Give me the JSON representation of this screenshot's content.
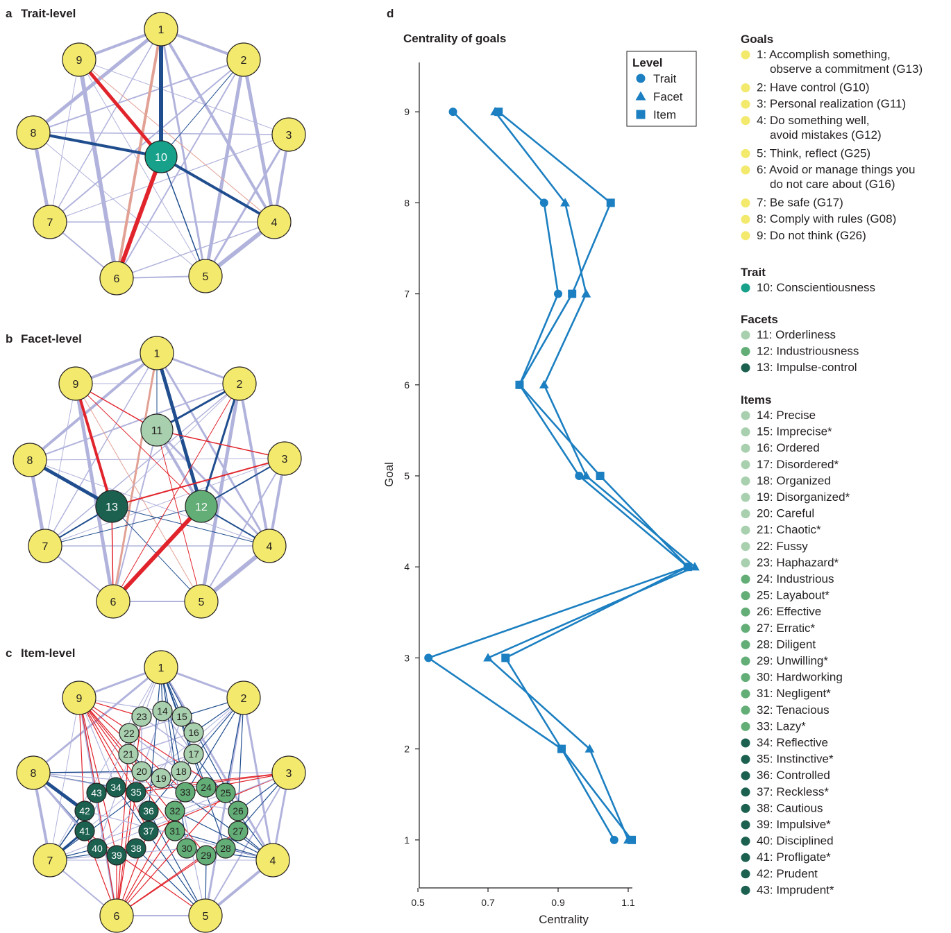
{
  "panels": {
    "a": {
      "letter": "a",
      "title": "Trait-level"
    },
    "b": {
      "letter": "b",
      "title": "Facet-level"
    },
    "c": {
      "letter": "c",
      "title": "Item-level"
    },
    "d": {
      "letter": "d"
    }
  },
  "colors": {
    "goal": "#f2e96d",
    "trait": "#17a08a",
    "facet_orderliness": "#a8d0ae",
    "facet_industriousness": "#63ad76",
    "facet_impulse": "#1c6150",
    "edge_positive": "#b1b3dc",
    "edge_strong": "#1f4d8e",
    "edge_negative": "#e1242c",
    "edge_negative_weak": "#e2a195",
    "series": "#1b7fc1"
  },
  "networks": {
    "trait": {
      "nodes": [
        "1",
        "2",
        "3",
        "4",
        "5",
        "6",
        "7",
        "8",
        "9",
        "10"
      ]
    },
    "facet": {
      "nodes": [
        "1",
        "2",
        "3",
        "4",
        "5",
        "6",
        "7",
        "8",
        "9",
        "11",
        "12",
        "13"
      ]
    },
    "item": {
      "nodes": [
        "1",
        "2",
        "3",
        "4",
        "5",
        "6",
        "7",
        "8",
        "9",
        "14",
        "15",
        "16",
        "17",
        "18",
        "19",
        "20",
        "21",
        "22",
        "23",
        "24",
        "25",
        "26",
        "27",
        "28",
        "29",
        "30",
        "31",
        "32",
        "33",
        "34",
        "35",
        "36",
        "37",
        "38",
        "39",
        "40",
        "41",
        "42",
        "43"
      ]
    }
  },
  "chart_data": {
    "type": "line",
    "title": "Centrality of goals",
    "xlabel": "Centrality",
    "ylabel": "Goal",
    "xlim": [
      0.49,
      1.31
    ],
    "ylim": [
      0.45,
      9.55
    ],
    "xticks": [
      "0.5",
      "0.7",
      "0.9",
      "1.1"
    ],
    "xtick_values": [
      0.5,
      0.7,
      0.9,
      1.1
    ],
    "yticks": [
      "1",
      "2",
      "3",
      "4",
      "5",
      "6",
      "7",
      "8",
      "9"
    ],
    "y": [
      1,
      2,
      3,
      4,
      5,
      6,
      7,
      8,
      9
    ],
    "legend": {
      "title": "Level",
      "position": "top-right"
    },
    "series": [
      {
        "name": "Trait",
        "marker": "circle",
        "values": [
          1.06,
          0.91,
          0.53,
          1.27,
          0.96,
          0.79,
          0.9,
          0.86,
          0.6
        ]
      },
      {
        "name": "Facet",
        "marker": "triangle",
        "values": [
          1.1,
          0.99,
          0.7,
          1.29,
          0.98,
          0.86,
          0.98,
          0.92,
          0.72
        ]
      },
      {
        "name": "Item",
        "marker": "square",
        "values": [
          1.11,
          0.91,
          0.75,
          1.27,
          1.02,
          0.79,
          0.94,
          1.05,
          0.73
        ]
      }
    ]
  },
  "legend": {
    "sections": [
      {
        "title": "Goals",
        "items": [
          {
            "lines": [
              "1: Accomplish something,",
              "observe a commitment (G13)"
            ],
            "color": "#f2e96d"
          },
          {
            "lines": [
              "2: Have control (G10)"
            ],
            "color": "#f2e96d"
          },
          {
            "lines": [
              "3: Personal realization (G11)"
            ],
            "color": "#f2e96d"
          },
          {
            "lines": [
              "4: Do something well,",
              "avoid mistakes (G12)"
            ],
            "color": "#f2e96d"
          },
          {
            "lines": [
              "5: Think, reflect (G25)"
            ],
            "color": "#f2e96d"
          },
          {
            "lines": [
              "6: Avoid or manage things you",
              "do not care about (G16)"
            ],
            "color": "#f2e96d"
          },
          {
            "lines": [
              "7: Be safe (G17)"
            ],
            "color": "#f2e96d"
          },
          {
            "lines": [
              "8: Comply with rules (G08)"
            ],
            "color": "#f2e96d"
          },
          {
            "lines": [
              "9: Do not think (G26)"
            ],
            "color": "#f2e96d"
          }
        ]
      },
      {
        "title": "Trait",
        "items": [
          {
            "lines": [
              "10: Conscientiousness"
            ],
            "color": "#17a08a"
          }
        ]
      },
      {
        "title": "Facets",
        "items": [
          {
            "lines": [
              "11: Orderliness"
            ],
            "color": "#a8d0ae"
          },
          {
            "lines": [
              "12: Industriousness"
            ],
            "color": "#63ad76"
          },
          {
            "lines": [
              "13: Impulse-control"
            ],
            "color": "#1c6150"
          }
        ]
      },
      {
        "title": "Items",
        "items": [
          {
            "lines": [
              "14: Precise"
            ],
            "color": "#a8d0ae"
          },
          {
            "lines": [
              "15: Imprecise*"
            ],
            "color": "#a8d0ae"
          },
          {
            "lines": [
              "16: Ordered"
            ],
            "color": "#a8d0ae"
          },
          {
            "lines": [
              "17: Disordered*"
            ],
            "color": "#a8d0ae"
          },
          {
            "lines": [
              "18: Organized"
            ],
            "color": "#a8d0ae"
          },
          {
            "lines": [
              "19: Disorganized*"
            ],
            "color": "#a8d0ae"
          },
          {
            "lines": [
              "20: Careful"
            ],
            "color": "#a8d0ae"
          },
          {
            "lines": [
              "21: Chaotic*"
            ],
            "color": "#a8d0ae"
          },
          {
            "lines": [
              "22: Fussy"
            ],
            "color": "#a8d0ae"
          },
          {
            "lines": [
              "23: Haphazard*"
            ],
            "color": "#a8d0ae"
          },
          {
            "lines": [
              "24: Industrious"
            ],
            "color": "#63ad76"
          },
          {
            "lines": [
              "25: Layabout*"
            ],
            "color": "#63ad76"
          },
          {
            "lines": [
              "26: Effective"
            ],
            "color": "#63ad76"
          },
          {
            "lines": [
              "27: Erratic*"
            ],
            "color": "#63ad76"
          },
          {
            "lines": [
              "28: Diligent"
            ],
            "color": "#63ad76"
          },
          {
            "lines": [
              "29: Unwilling*"
            ],
            "color": "#63ad76"
          },
          {
            "lines": [
              "30: Hardworking"
            ],
            "color": "#63ad76"
          },
          {
            "lines": [
              "31: Negligent*"
            ],
            "color": "#63ad76"
          },
          {
            "lines": [
              "32: Tenacious"
            ],
            "color": "#63ad76"
          },
          {
            "lines": [
              "33: Lazy*"
            ],
            "color": "#63ad76"
          },
          {
            "lines": [
              "34: Reflective"
            ],
            "color": "#1c6150"
          },
          {
            "lines": [
              "35: Instinctive*"
            ],
            "color": "#1c6150"
          },
          {
            "lines": [
              "36: Controlled"
            ],
            "color": "#1c6150"
          },
          {
            "lines": [
              "37: Reckless*"
            ],
            "color": "#1c6150"
          },
          {
            "lines": [
              "38: Cautious"
            ],
            "color": "#1c6150"
          },
          {
            "lines": [
              "39: Impulsive*"
            ],
            "color": "#1c6150"
          },
          {
            "lines": [
              "40: Disciplined"
            ],
            "color": "#1c6150"
          },
          {
            "lines": [
              "41: Profligate*"
            ],
            "color": "#1c6150"
          },
          {
            "lines": [
              "42: Prudent"
            ],
            "color": "#1c6150"
          },
          {
            "lines": [
              "43: Imprudent*"
            ],
            "color": "#1c6150"
          }
        ]
      }
    ]
  }
}
